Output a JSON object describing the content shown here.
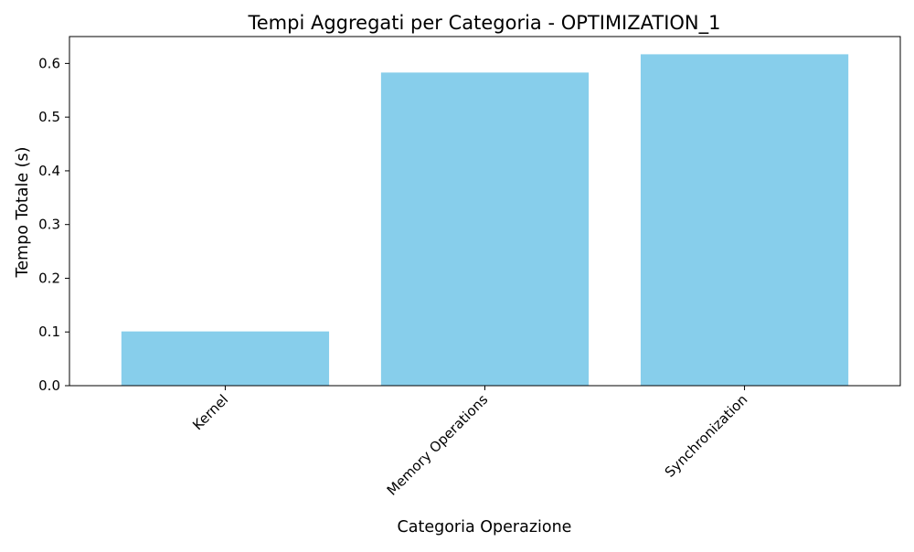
{
  "chart_data": {
    "type": "bar",
    "title": "Tempi Aggregati per Categoria - OPTIMIZATION_1",
    "xlabel": "Categoria Operazione",
    "ylabel": "Tempo Totale (s)",
    "categories": [
      "Kernel",
      "Memory Operations",
      "Synchronization"
    ],
    "values": [
      0.101,
      0.583,
      0.617
    ],
    "ylim": [
      0,
      0.65
    ],
    "yticks": [
      0.0,
      0.1,
      0.2,
      0.3,
      0.4,
      0.5,
      0.6
    ],
    "ytick_labels": [
      "0.0",
      "0.1",
      "0.2",
      "0.3",
      "0.4",
      "0.5",
      "0.6"
    ],
    "bar_color": "#87CEEB",
    "grid": false,
    "legend": "none"
  }
}
